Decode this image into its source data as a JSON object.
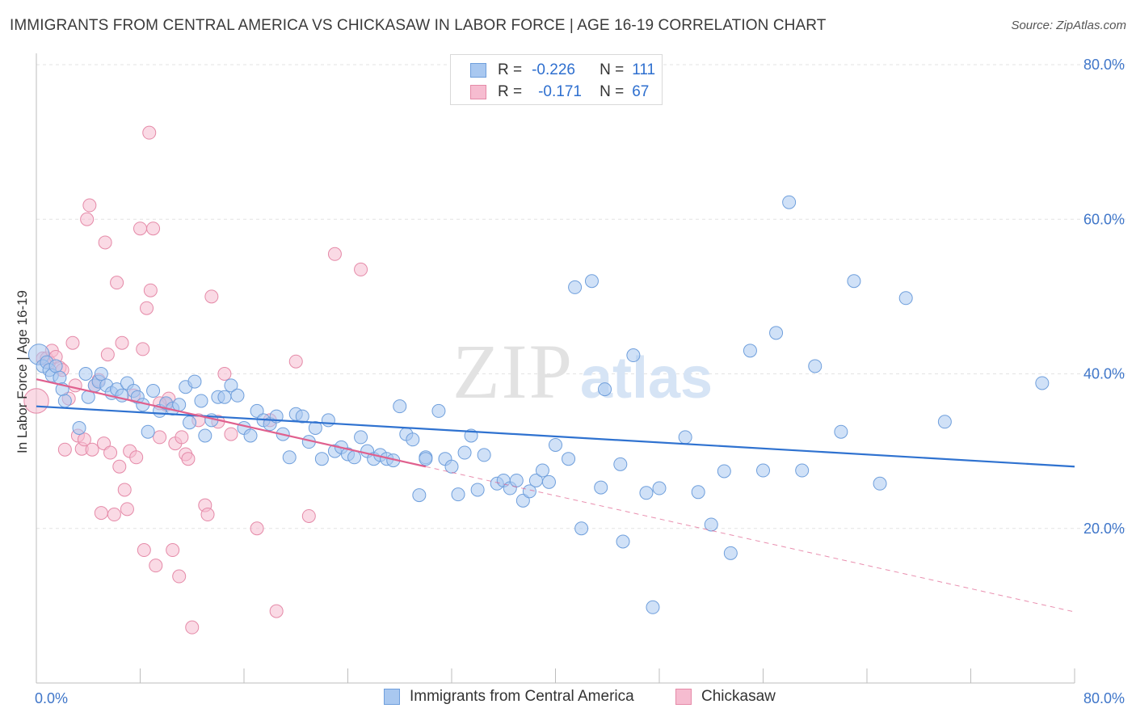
{
  "title": "IMMIGRANTS FROM CENTRAL AMERICA VS CHICKASAW IN LABOR FORCE | AGE 16-19 CORRELATION CHART",
  "source": "Source: ZipAtlas.com",
  "watermark": {
    "zip": "ZIP",
    "atlas": "atlas"
  },
  "legend_top": [
    {
      "r_label": "R =",
      "r_value": "-0.226",
      "n_label": "N =",
      "n_value": "111"
    },
    {
      "r_label": "R =",
      "r_value": "-0.171",
      "n_label": "N =",
      "n_value": "67"
    }
  ],
  "legend_bottom": [
    "Immigrants from Central America",
    "Chickasaw"
  ],
  "colors": {
    "blue_fill": "#a9c8f0",
    "blue_stroke": "#6f9fdc",
    "blue_line": "#2f72d0",
    "pink_fill": "#f6bcd0",
    "pink_stroke": "#e58aa8",
    "pink_line": "#e0608e",
    "axis_text": "#3f76c9",
    "grid": "#e3e3e3"
  },
  "chart_data": {
    "type": "scatter",
    "title": "IMMIGRANTS FROM CENTRAL AMERICA VS CHICKASAW IN LABOR FORCE | AGE 16-19 CORRELATION CHART",
    "xlabel": "",
    "ylabel": "In Labor Force | Age 16-19",
    "xlim": [
      0,
      0.8
    ],
    "ylim": [
      0,
      0.8
    ],
    "x_ticks": [
      0,
      0.8
    ],
    "x_tick_labels": [
      "0.0%",
      "80.0%"
    ],
    "y_ticks": [
      0.2,
      0.4,
      0.6,
      0.8
    ],
    "y_tick_labels": [
      "20.0%",
      "40.0%",
      "60.0%",
      "80.0%"
    ],
    "grid": true,
    "legend_position": "top-center",
    "series": [
      {
        "name": "Immigrants from Central America",
        "color": "#6f9fdc",
        "R": -0.226,
        "N": 111,
        "trend": {
          "x": [
            0.0,
            0.8
          ],
          "y": [
            0.358,
            0.28
          ]
        },
        "points": [
          [
            0.002,
            0.425,
            1.6
          ],
          [
            0.005,
            0.41,
            1.0
          ],
          [
            0.008,
            0.415,
            1.0
          ],
          [
            0.01,
            0.405,
            1.0
          ],
          [
            0.012,
            0.398,
            1.0
          ],
          [
            0.015,
            0.41,
            1.0
          ],
          [
            0.018,
            0.395,
            1.0
          ],
          [
            0.02,
            0.38,
            1.0
          ],
          [
            0.022,
            0.365,
            1.0
          ],
          [
            0.033,
            0.33,
            1.0
          ],
          [
            0.038,
            0.4,
            1.0
          ],
          [
            0.04,
            0.37,
            1.0
          ],
          [
            0.045,
            0.385,
            1.0
          ],
          [
            0.048,
            0.39,
            1.0
          ],
          [
            0.05,
            0.4,
            1.0
          ],
          [
            0.054,
            0.385,
            1.0
          ],
          [
            0.058,
            0.375,
            1.0
          ],
          [
            0.062,
            0.38,
            1.0
          ],
          [
            0.066,
            0.372,
            1.0
          ],
          [
            0.07,
            0.388,
            1.0
          ],
          [
            0.075,
            0.378,
            1.0
          ],
          [
            0.078,
            0.37,
            1.0
          ],
          [
            0.082,
            0.36,
            1.0
          ],
          [
            0.086,
            0.325,
            1.0
          ],
          [
            0.09,
            0.378,
            1.0
          ],
          [
            0.095,
            0.352,
            1.0
          ],
          [
            0.1,
            0.362,
            1.0
          ],
          [
            0.105,
            0.355,
            1.0
          ],
          [
            0.11,
            0.36,
            1.0
          ],
          [
            0.115,
            0.383,
            1.0
          ],
          [
            0.118,
            0.337,
            1.0
          ],
          [
            0.122,
            0.39,
            1.0
          ],
          [
            0.127,
            0.365,
            1.0
          ],
          [
            0.13,
            0.32,
            1.0
          ],
          [
            0.135,
            0.34,
            1.0
          ],
          [
            0.14,
            0.37,
            1.0
          ],
          [
            0.145,
            0.37,
            1.0
          ],
          [
            0.15,
            0.385,
            1.0
          ],
          [
            0.155,
            0.372,
            1.0
          ],
          [
            0.16,
            0.33,
            1.0
          ],
          [
            0.165,
            0.32,
            1.0
          ],
          [
            0.17,
            0.352,
            1.0
          ],
          [
            0.175,
            0.34,
            1.0
          ],
          [
            0.18,
            0.335,
            1.0
          ],
          [
            0.185,
            0.345,
            1.0
          ],
          [
            0.19,
            0.322,
            1.0
          ],
          [
            0.195,
            0.292,
            1.0
          ],
          [
            0.2,
            0.348,
            1.0
          ],
          [
            0.205,
            0.345,
            1.0
          ],
          [
            0.21,
            0.312,
            1.0
          ],
          [
            0.215,
            0.33,
            1.0
          ],
          [
            0.22,
            0.29,
            1.0
          ],
          [
            0.225,
            0.34,
            1.0
          ],
          [
            0.23,
            0.3,
            1.0
          ],
          [
            0.235,
            0.305,
            1.0
          ],
          [
            0.24,
            0.296,
            1.0
          ],
          [
            0.245,
            0.292,
            1.0
          ],
          [
            0.25,
            0.318,
            1.0
          ],
          [
            0.255,
            0.3,
            1.0
          ],
          [
            0.26,
            0.29,
            1.0
          ],
          [
            0.265,
            0.295,
            1.0
          ],
          [
            0.27,
            0.29,
            1.0
          ],
          [
            0.275,
            0.288,
            1.0
          ],
          [
            0.28,
            0.358,
            1.0
          ],
          [
            0.285,
            0.322,
            1.0
          ],
          [
            0.29,
            0.315,
            1.0
          ],
          [
            0.295,
            0.243,
            1.0
          ],
          [
            0.3,
            0.292,
            1.0
          ],
          [
            0.31,
            0.352,
            1.0
          ],
          [
            0.315,
            0.29,
            1.0
          ],
          [
            0.32,
            0.28,
            1.0
          ],
          [
            0.325,
            0.244,
            1.0
          ],
          [
            0.33,
            0.298,
            1.0
          ],
          [
            0.335,
            0.32,
            1.0
          ],
          [
            0.34,
            0.25,
            1.0
          ],
          [
            0.345,
            0.295,
            1.0
          ],
          [
            0.355,
            0.258,
            1.0
          ],
          [
            0.36,
            0.262,
            1.0
          ],
          [
            0.365,
            0.252,
            1.0
          ],
          [
            0.37,
            0.262,
            1.0
          ],
          [
            0.375,
            0.236,
            1.0
          ],
          [
            0.38,
            0.248,
            1.0
          ],
          [
            0.385,
            0.262,
            1.0
          ],
          [
            0.39,
            0.275,
            1.0
          ],
          [
            0.395,
            0.26,
            1.0
          ],
          [
            0.4,
            0.308,
            1.0
          ],
          [
            0.41,
            0.29,
            1.0
          ],
          [
            0.42,
            0.2,
            1.0
          ],
          [
            0.415,
            0.512,
            1.0
          ],
          [
            0.428,
            0.52,
            1.0
          ],
          [
            0.435,
            0.253,
            1.0
          ],
          [
            0.438,
            0.38,
            1.0
          ],
          [
            0.45,
            0.283,
            1.0
          ],
          [
            0.452,
            0.183,
            1.0
          ],
          [
            0.46,
            0.424,
            1.0
          ],
          [
            0.47,
            0.246,
            1.0
          ],
          [
            0.475,
            0.098,
            1.0
          ],
          [
            0.48,
            0.252,
            1.0
          ],
          [
            0.5,
            0.318,
            1.0
          ],
          [
            0.51,
            0.247,
            1.0
          ],
          [
            0.52,
            0.205,
            1.0
          ],
          [
            0.53,
            0.274,
            1.0
          ],
          [
            0.535,
            0.168,
            1.0
          ],
          [
            0.55,
            0.43,
            1.0
          ],
          [
            0.56,
            0.275,
            1.0
          ],
          [
            0.57,
            0.453,
            1.0
          ],
          [
            0.58,
            0.622,
            1.0
          ],
          [
            0.59,
            0.275,
            1.0
          ],
          [
            0.6,
            0.41,
            1.0
          ],
          [
            0.62,
            0.325,
            1.0
          ],
          [
            0.63,
            0.52,
            1.0
          ],
          [
            0.65,
            0.258,
            1.0
          ],
          [
            0.67,
            0.498,
            1.0
          ],
          [
            0.7,
            0.338,
            1.0
          ],
          [
            0.775,
            0.388,
            1.0
          ],
          [
            0.3,
            0.29,
            1.0
          ]
        ]
      },
      {
        "name": "Chickasaw",
        "color": "#e58aa8",
        "R": -0.171,
        "N": 67,
        "trend": {
          "x": [
            0.0,
            0.3
          ],
          "y": [
            0.393,
            0.28
          ]
        },
        "trend_extension": {
          "x": [
            0.3,
            0.8
          ],
          "y": [
            0.28,
            0.092
          ]
        },
        "points": [
          [
            0.0,
            0.365,
            1.9
          ],
          [
            0.005,
            0.42,
            1.0
          ],
          [
            0.008,
            0.42,
            1.0
          ],
          [
            0.01,
            0.415,
            1.0
          ],
          [
            0.012,
            0.43,
            1.0
          ],
          [
            0.015,
            0.422,
            1.0
          ],
          [
            0.018,
            0.408,
            1.0
          ],
          [
            0.02,
            0.405,
            1.0
          ],
          [
            0.022,
            0.302,
            1.0
          ],
          [
            0.025,
            0.368,
            1.0
          ],
          [
            0.028,
            0.44,
            1.0
          ],
          [
            0.03,
            0.385,
            1.0
          ],
          [
            0.032,
            0.32,
            1.0
          ],
          [
            0.035,
            0.303,
            1.0
          ],
          [
            0.037,
            0.315,
            1.0
          ],
          [
            0.039,
            0.6,
            1.0
          ],
          [
            0.041,
            0.618,
            1.0
          ],
          [
            0.043,
            0.302,
            1.0
          ],
          [
            0.045,
            0.385,
            1.0
          ],
          [
            0.048,
            0.392,
            1.0
          ],
          [
            0.05,
            0.22,
            1.0
          ],
          [
            0.052,
            0.31,
            1.0
          ],
          [
            0.053,
            0.57,
            1.0
          ],
          [
            0.055,
            0.425,
            1.0
          ],
          [
            0.057,
            0.298,
            1.0
          ],
          [
            0.06,
            0.218,
            1.0
          ],
          [
            0.062,
            0.518,
            1.0
          ],
          [
            0.064,
            0.28,
            1.0
          ],
          [
            0.066,
            0.44,
            1.0
          ],
          [
            0.068,
            0.25,
            1.0
          ],
          [
            0.07,
            0.225,
            1.0
          ],
          [
            0.072,
            0.3,
            1.0
          ],
          [
            0.075,
            0.372,
            1.0
          ],
          [
            0.077,
            0.292,
            1.0
          ],
          [
            0.08,
            0.588,
            1.0
          ],
          [
            0.082,
            0.432,
            1.0
          ],
          [
            0.083,
            0.172,
            1.0
          ],
          [
            0.085,
            0.485,
            1.0
          ],
          [
            0.087,
            0.712,
            1.0
          ],
          [
            0.088,
            0.508,
            1.0
          ],
          [
            0.09,
            0.588,
            1.0
          ],
          [
            0.092,
            0.152,
            1.0
          ],
          [
            0.095,
            0.318,
            1.0
          ],
          [
            0.1,
            0.36,
            1.0
          ],
          [
            0.102,
            0.368,
            1.0
          ],
          [
            0.105,
            0.172,
            1.0
          ],
          [
            0.107,
            0.31,
            1.0
          ],
          [
            0.11,
            0.138,
            1.0
          ],
          [
            0.112,
            0.318,
            1.0
          ],
          [
            0.115,
            0.296,
            1.0
          ],
          [
            0.117,
            0.29,
            1.0
          ],
          [
            0.12,
            0.072,
            1.0
          ],
          [
            0.125,
            0.34,
            1.0
          ],
          [
            0.13,
            0.23,
            1.0
          ],
          [
            0.132,
            0.218,
            1.0
          ],
          [
            0.135,
            0.5,
            1.0
          ],
          [
            0.14,
            0.338,
            1.0
          ],
          [
            0.145,
            0.4,
            1.0
          ],
          [
            0.15,
            0.322,
            1.0
          ],
          [
            0.17,
            0.2,
            1.0
          ],
          [
            0.18,
            0.34,
            1.0
          ],
          [
            0.185,
            0.093,
            1.0
          ],
          [
            0.2,
            0.416,
            1.0
          ],
          [
            0.21,
            0.216,
            1.0
          ],
          [
            0.23,
            0.555,
            1.0
          ],
          [
            0.25,
            0.535,
            1.0
          ],
          [
            0.095,
            0.362,
            1.0
          ]
        ]
      }
    ]
  }
}
